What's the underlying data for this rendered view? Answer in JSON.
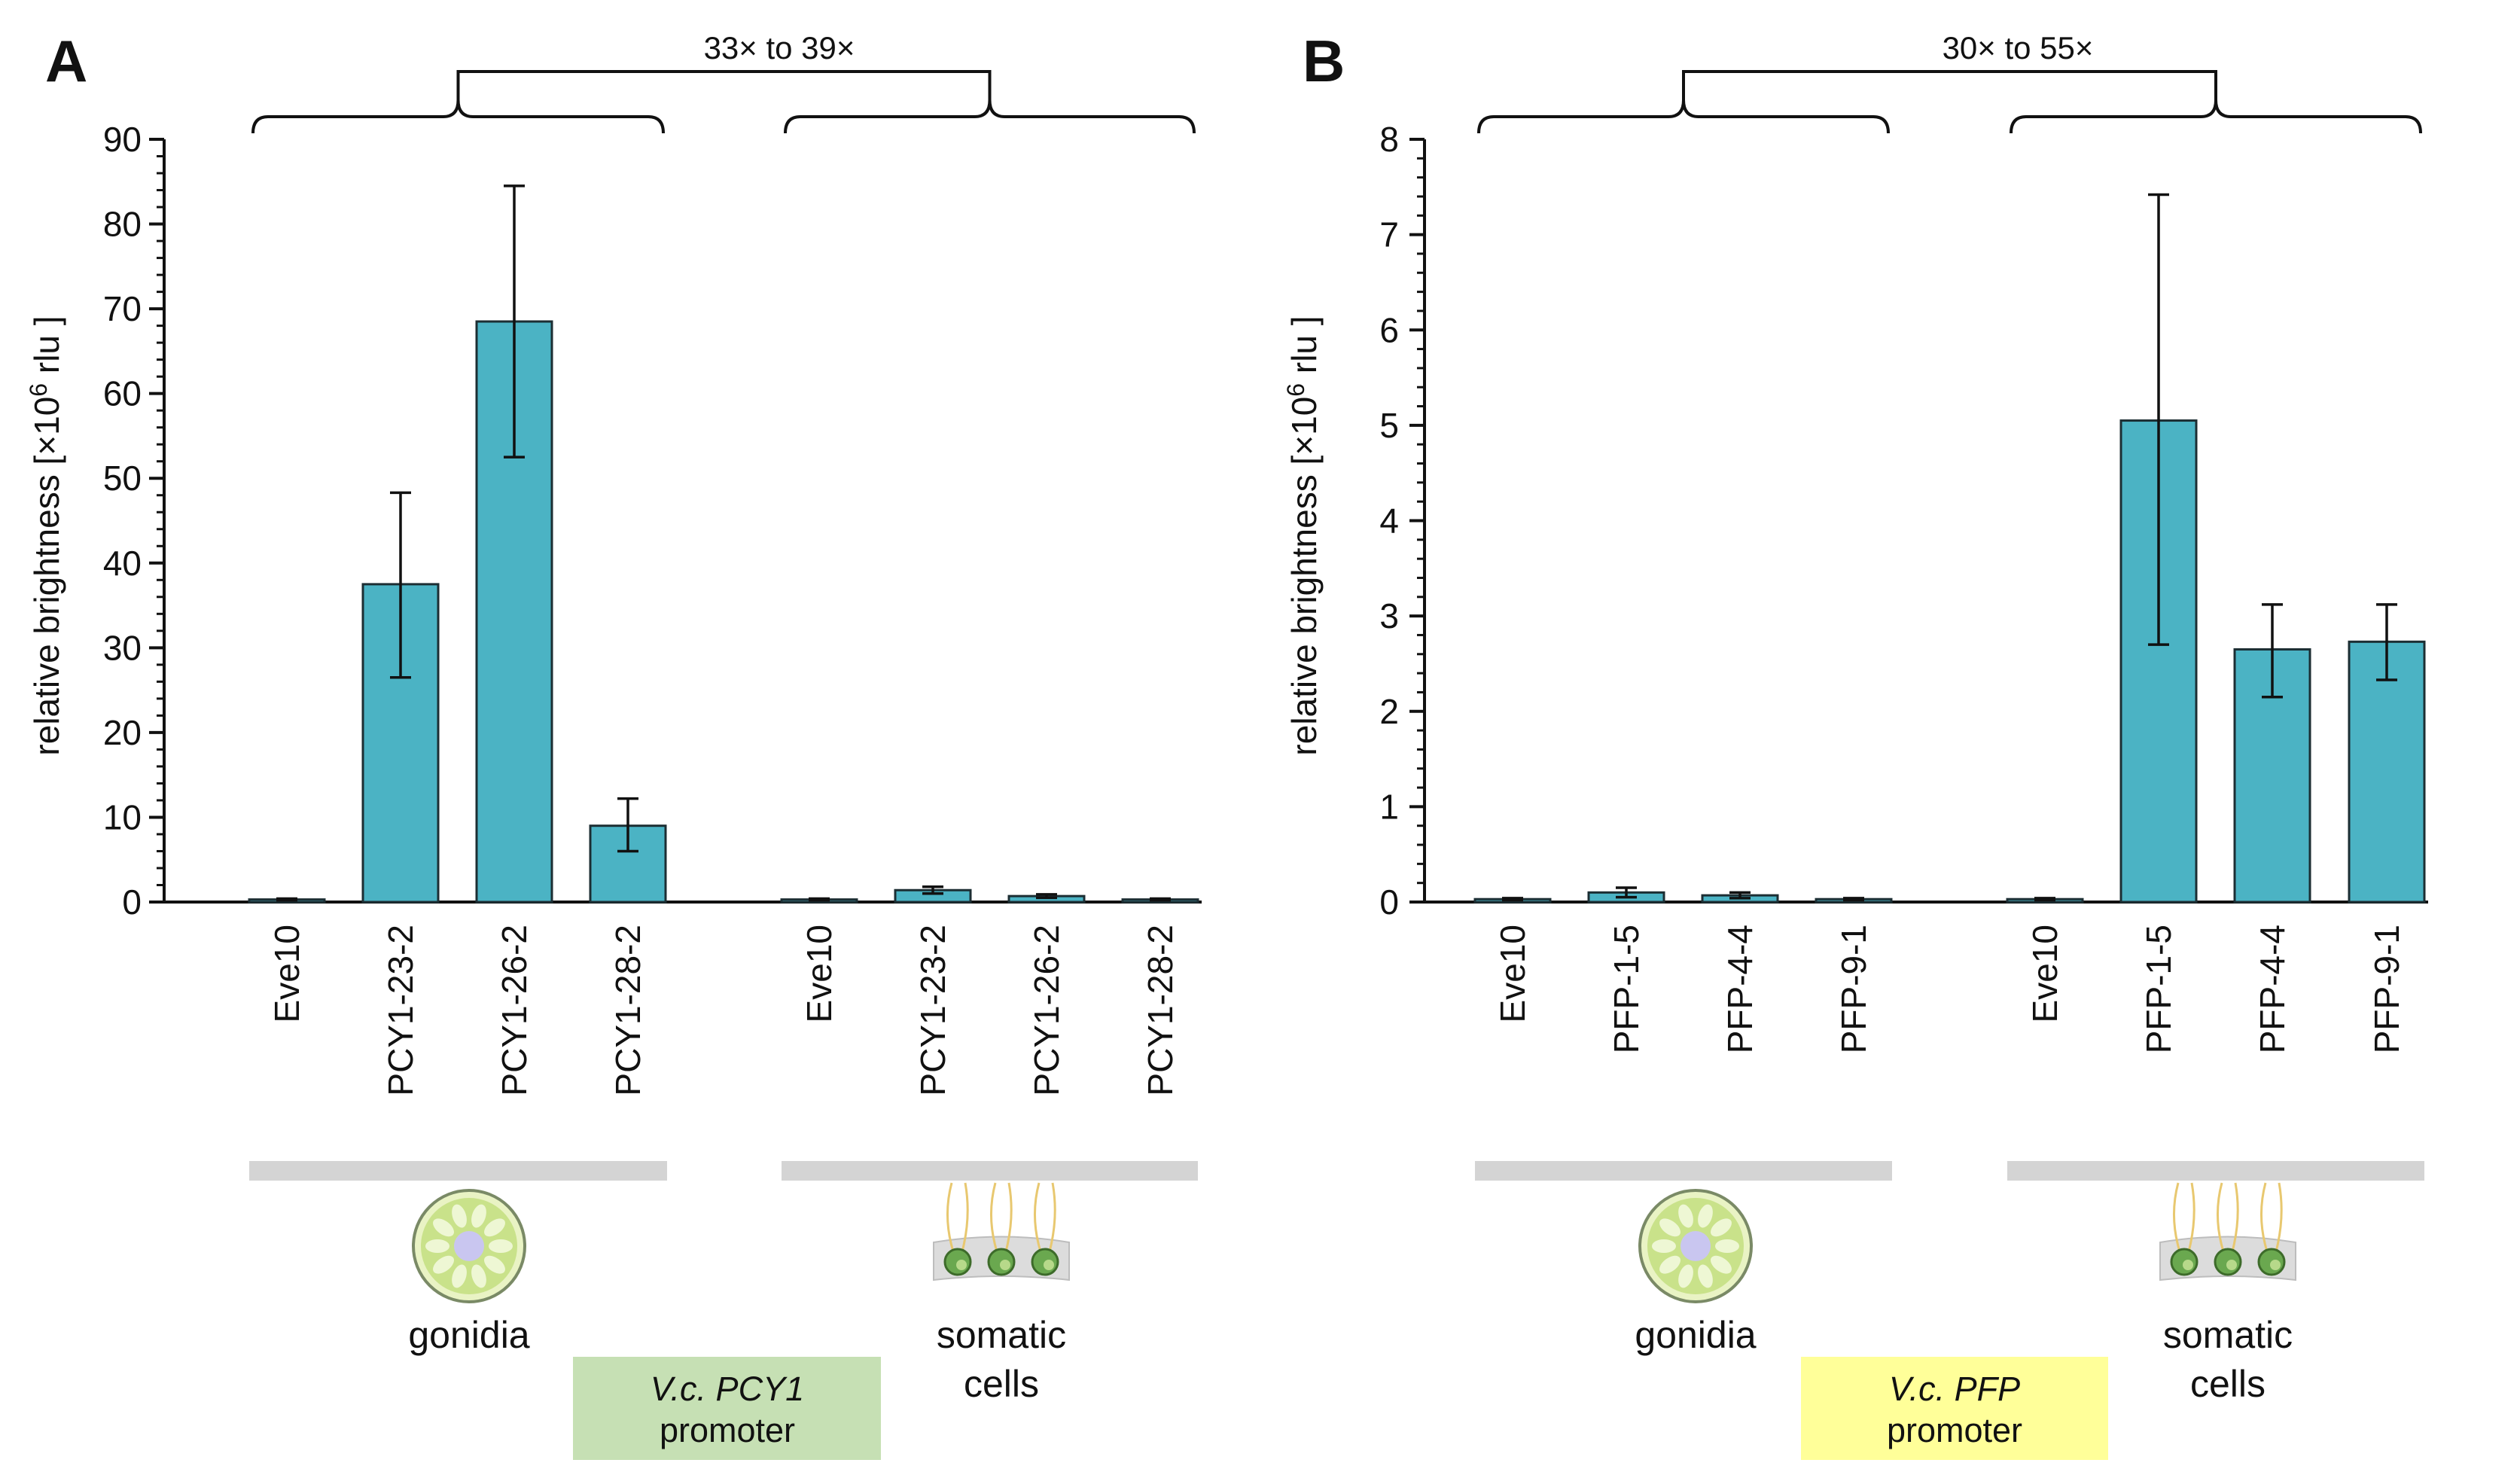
{
  "colors": {
    "bar": "#4bb3c4",
    "bar_stroke": "#1c2e33",
    "axis": "#111111",
    "group_bar": "#d4d4d4",
    "pcy1_box": "#c6e0b4",
    "pfp_box": "#ffff99",
    "cell_green": "#c9e28a",
    "cell_nucleus": "#c9c6f0",
    "soma_band": "#dcdcdc",
    "soma_cell": "#6aa84f",
    "flagella": "#e8c870"
  },
  "panels": [
    {
      "letter": "A",
      "comparison_label": "33× to 39×",
      "promoter_italic": "V.c. PCY1",
      "promoter_word": "promoter",
      "group_labels": {
        "left": "gonidia",
        "right_line1": "somatic",
        "right_line2": "cells"
      },
      "icons": {
        "left": "gonidium-icon",
        "right": "somatic-cells-icon"
      }
    },
    {
      "letter": "B",
      "comparison_label": "30× to 55×",
      "promoter_italic": "V.c. PFP",
      "promoter_word": "promoter",
      "group_labels": {
        "left": "gonidia",
        "right_line1": "somatic",
        "right_line2": "cells"
      },
      "icons": {
        "left": "gonidium-icon",
        "right": "somatic-cells-icon"
      }
    }
  ],
  "chart_data": [
    {
      "type": "bar",
      "panel": "A",
      "ylabel_prefix": "relative brightness [×10",
      "ylabel_exp": "6",
      "ylabel_suffix": " rlu ]",
      "ylim": [
        0,
        90
      ],
      "yticks": [
        0,
        10,
        20,
        30,
        40,
        50,
        60,
        70,
        80,
        90
      ],
      "y_minor_step": 2,
      "groups": [
        {
          "name": "gonidia",
          "categories": [
            "Eve10",
            "PCY1-23-2",
            "PCY1-26-2",
            "PCY1-28-2"
          ],
          "values": [
            0.3,
            37.5,
            68.5,
            9.0
          ],
          "err_low": [
            0.1,
            11.0,
            16.0,
            3.0
          ],
          "err_high": [
            0.1,
            10.8,
            16.0,
            3.2
          ]
        },
        {
          "name": "somatic cells",
          "categories": [
            "Eve10",
            "PCY1-23-2",
            "PCY1-26-2",
            "PCY1-28-2"
          ],
          "values": [
            0.3,
            1.4,
            0.7,
            0.3
          ],
          "err_low": [
            0.1,
            0.4,
            0.2,
            0.1
          ],
          "err_high": [
            0.1,
            0.4,
            0.2,
            0.1
          ]
        }
      ]
    },
    {
      "type": "bar",
      "panel": "B",
      "ylabel_prefix": "relative brightness [×10",
      "ylabel_exp": "6",
      "ylabel_suffix": " rlu ]",
      "ylim": [
        0,
        8
      ],
      "yticks": [
        0,
        1,
        2,
        3,
        4,
        5,
        6,
        7,
        8
      ],
      "y_minor_step": 0.2,
      "groups": [
        {
          "name": "gonidia",
          "categories": [
            "Eve10",
            "PFP-1-5",
            "PFP-4-4",
            "PFP-9-1"
          ],
          "values": [
            0.03,
            0.1,
            0.07,
            0.03
          ],
          "err_low": [
            0.01,
            0.05,
            0.03,
            0.01
          ],
          "err_high": [
            0.01,
            0.05,
            0.03,
            0.01
          ]
        },
        {
          "name": "somatic cells",
          "categories": [
            "Eve10",
            "PFP-1-5",
            "PFP-4-4",
            "PFP-9-1"
          ],
          "values": [
            0.03,
            5.05,
            2.65,
            2.73
          ],
          "err_low": [
            0.01,
            2.35,
            0.5,
            0.4
          ],
          "err_high": [
            0.01,
            2.37,
            0.47,
            0.39
          ]
        }
      ]
    }
  ]
}
